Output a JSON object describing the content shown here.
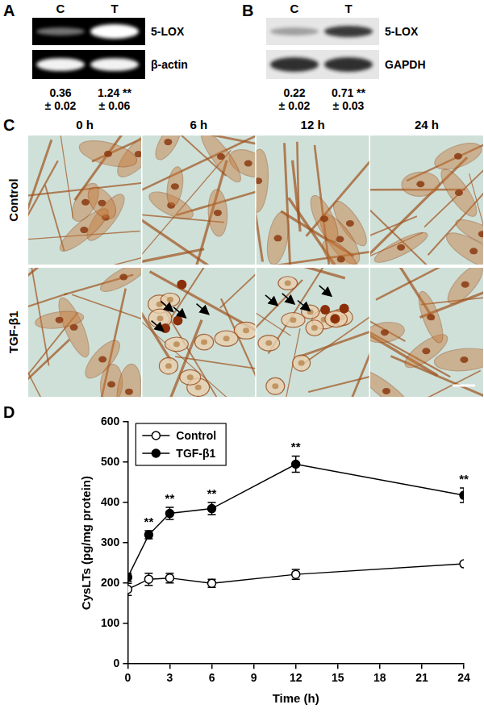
{
  "panels": {
    "A": {
      "label": "A",
      "lanes": [
        "C",
        "T"
      ],
      "bands": [
        "5-LOX",
        "β-actin"
      ],
      "values": [
        [
          "0.36",
          "± 0.02"
        ],
        [
          "1.24 **",
          "± 0.06"
        ]
      ]
    },
    "B": {
      "label": "B",
      "lanes": [
        "C",
        "T"
      ],
      "bands": [
        "5-LOX",
        "GAPDH"
      ],
      "values": [
        [
          "0.22",
          "± 0.02"
        ],
        [
          "0.71 **",
          "± 0.03"
        ]
      ]
    },
    "C": {
      "label": "C",
      "columns": [
        "0 h",
        "6 h",
        "12 h",
        "24 h"
      ],
      "rows": [
        "Control",
        "TGF-β1"
      ]
    },
    "D": {
      "label": "D"
    }
  },
  "chart_data": {
    "type": "line",
    "x_label": "Time (h)",
    "y_label": "CysLTs (pg/mg protein)",
    "x": [
      0,
      1.5,
      3,
      6,
      12,
      24
    ],
    "series": [
      {
        "name": "Control",
        "color": "#000000",
        "marker": "open circle",
        "values": [
          185,
          210,
          213,
          200,
          222,
          248
        ],
        "errors": [
          15,
          15,
          12,
          10,
          12,
          5
        ]
      },
      {
        "name": "TGF-β1",
        "color": "#000000",
        "marker": "filled circle",
        "values": [
          215,
          320,
          373,
          385,
          495,
          418
        ],
        "errors": [
          10,
          10,
          15,
          15,
          20,
          18
        ],
        "annotations": [
          null,
          "**",
          "**",
          "**",
          "**",
          "**"
        ]
      }
    ],
    "xlim": [
      0,
      24
    ],
    "xticks": [
      0,
      3,
      6,
      9,
      12,
      15,
      18,
      21,
      24
    ],
    "ylim": [
      0,
      600
    ],
    "yticks": [
      0,
      100,
      200,
      300,
      400,
      500,
      600
    ],
    "legend": "upper left",
    "grid": false
  }
}
